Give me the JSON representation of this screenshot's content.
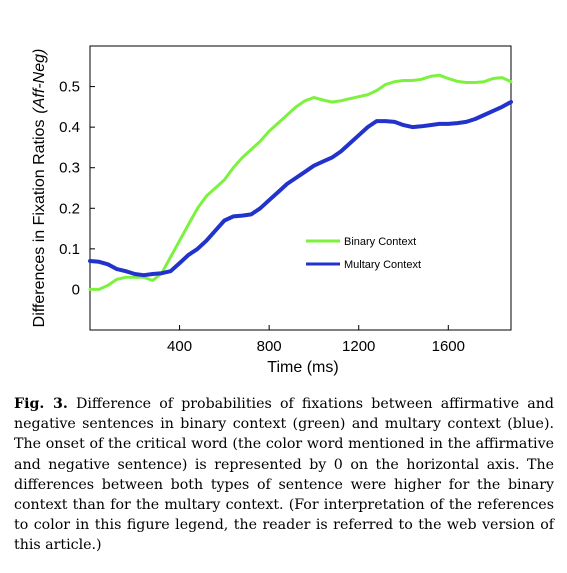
{
  "chart_data": {
    "type": "line",
    "xlabel": "Time (ms)",
    "ylabel_main": "Differences in Fixation Ratios",
    "ylabel_italic": "(Aff-Neg)",
    "xlim": [
      0,
      1880
    ],
    "ylim": [
      -0.1,
      0.6
    ],
    "xticks": [
      400,
      800,
      1200,
      1600
    ],
    "xtick_labels": [
      "400",
      "800",
      "1200",
      "1600"
    ],
    "yticks": [
      0,
      0.1,
      0.2,
      0.3,
      0.4,
      0.5
    ],
    "ytick_labels": [
      "0",
      "0.1",
      "0.2",
      "0.3",
      "0.4",
      "0.5"
    ],
    "grid": false,
    "legend_position": "lower-right",
    "series": [
      {
        "name": "Binary Context",
        "color": "#7cf23e",
        "x": [
          0,
          40,
          80,
          120,
          160,
          200,
          240,
          280,
          320,
          360,
          400,
          440,
          480,
          520,
          560,
          600,
          640,
          680,
          720,
          760,
          800,
          840,
          880,
          920,
          960,
          1000,
          1040,
          1080,
          1120,
          1160,
          1200,
          1240,
          1280,
          1320,
          1360,
          1400,
          1440,
          1480,
          1520,
          1560,
          1600,
          1640,
          1680,
          1720,
          1760,
          1800,
          1840,
          1880
        ],
        "y": [
          0.0,
          0.0,
          0.01,
          0.025,
          0.03,
          0.03,
          0.03,
          0.022,
          0.04,
          0.08,
          0.12,
          0.16,
          0.2,
          0.23,
          0.25,
          0.27,
          0.3,
          0.325,
          0.345,
          0.365,
          0.39,
          0.41,
          0.43,
          0.45,
          0.465,
          0.473,
          0.467,
          0.462,
          0.465,
          0.47,
          0.475,
          0.48,
          0.49,
          0.505,
          0.512,
          0.515,
          0.515,
          0.518,
          0.525,
          0.528,
          0.52,
          0.513,
          0.51,
          0.51,
          0.512,
          0.52,
          0.522,
          0.512
        ]
      },
      {
        "name": "Multary Context",
        "color": "#2233cc",
        "x": [
          0,
          40,
          80,
          120,
          160,
          200,
          240,
          280,
          320,
          360,
          400,
          440,
          480,
          520,
          560,
          600,
          640,
          680,
          720,
          760,
          800,
          840,
          880,
          920,
          960,
          1000,
          1040,
          1080,
          1120,
          1160,
          1200,
          1240,
          1280,
          1320,
          1360,
          1400,
          1440,
          1480,
          1520,
          1560,
          1600,
          1640,
          1680,
          1720,
          1760,
          1800,
          1840,
          1880
        ],
        "y": [
          0.07,
          0.068,
          0.062,
          0.05,
          0.045,
          0.038,
          0.035,
          0.038,
          0.04,
          0.045,
          0.065,
          0.085,
          0.1,
          0.12,
          0.145,
          0.17,
          0.18,
          0.182,
          0.185,
          0.2,
          0.22,
          0.24,
          0.26,
          0.275,
          0.29,
          0.305,
          0.315,
          0.325,
          0.34,
          0.36,
          0.38,
          0.4,
          0.415,
          0.415,
          0.413,
          0.405,
          0.4,
          0.402,
          0.405,
          0.408,
          0.408,
          0.41,
          0.413,
          0.42,
          0.43,
          0.44,
          0.45,
          0.462
        ]
      }
    ]
  },
  "caption": {
    "label": "Fig. 3.",
    "text": " Difference of probabilities of fixations between affirmative and negative sentences in binary context (green) and multary context (blue). The onset of the critical word (the color word mentioned in the affirmative and negative sentence) is represented by 0 on the horizontal axis. The differences between both types of sentence were higher for the binary context than for the multary context. (For interpretation of the references to color in this figure legend, the reader is referred to the web version of this article.)"
  }
}
